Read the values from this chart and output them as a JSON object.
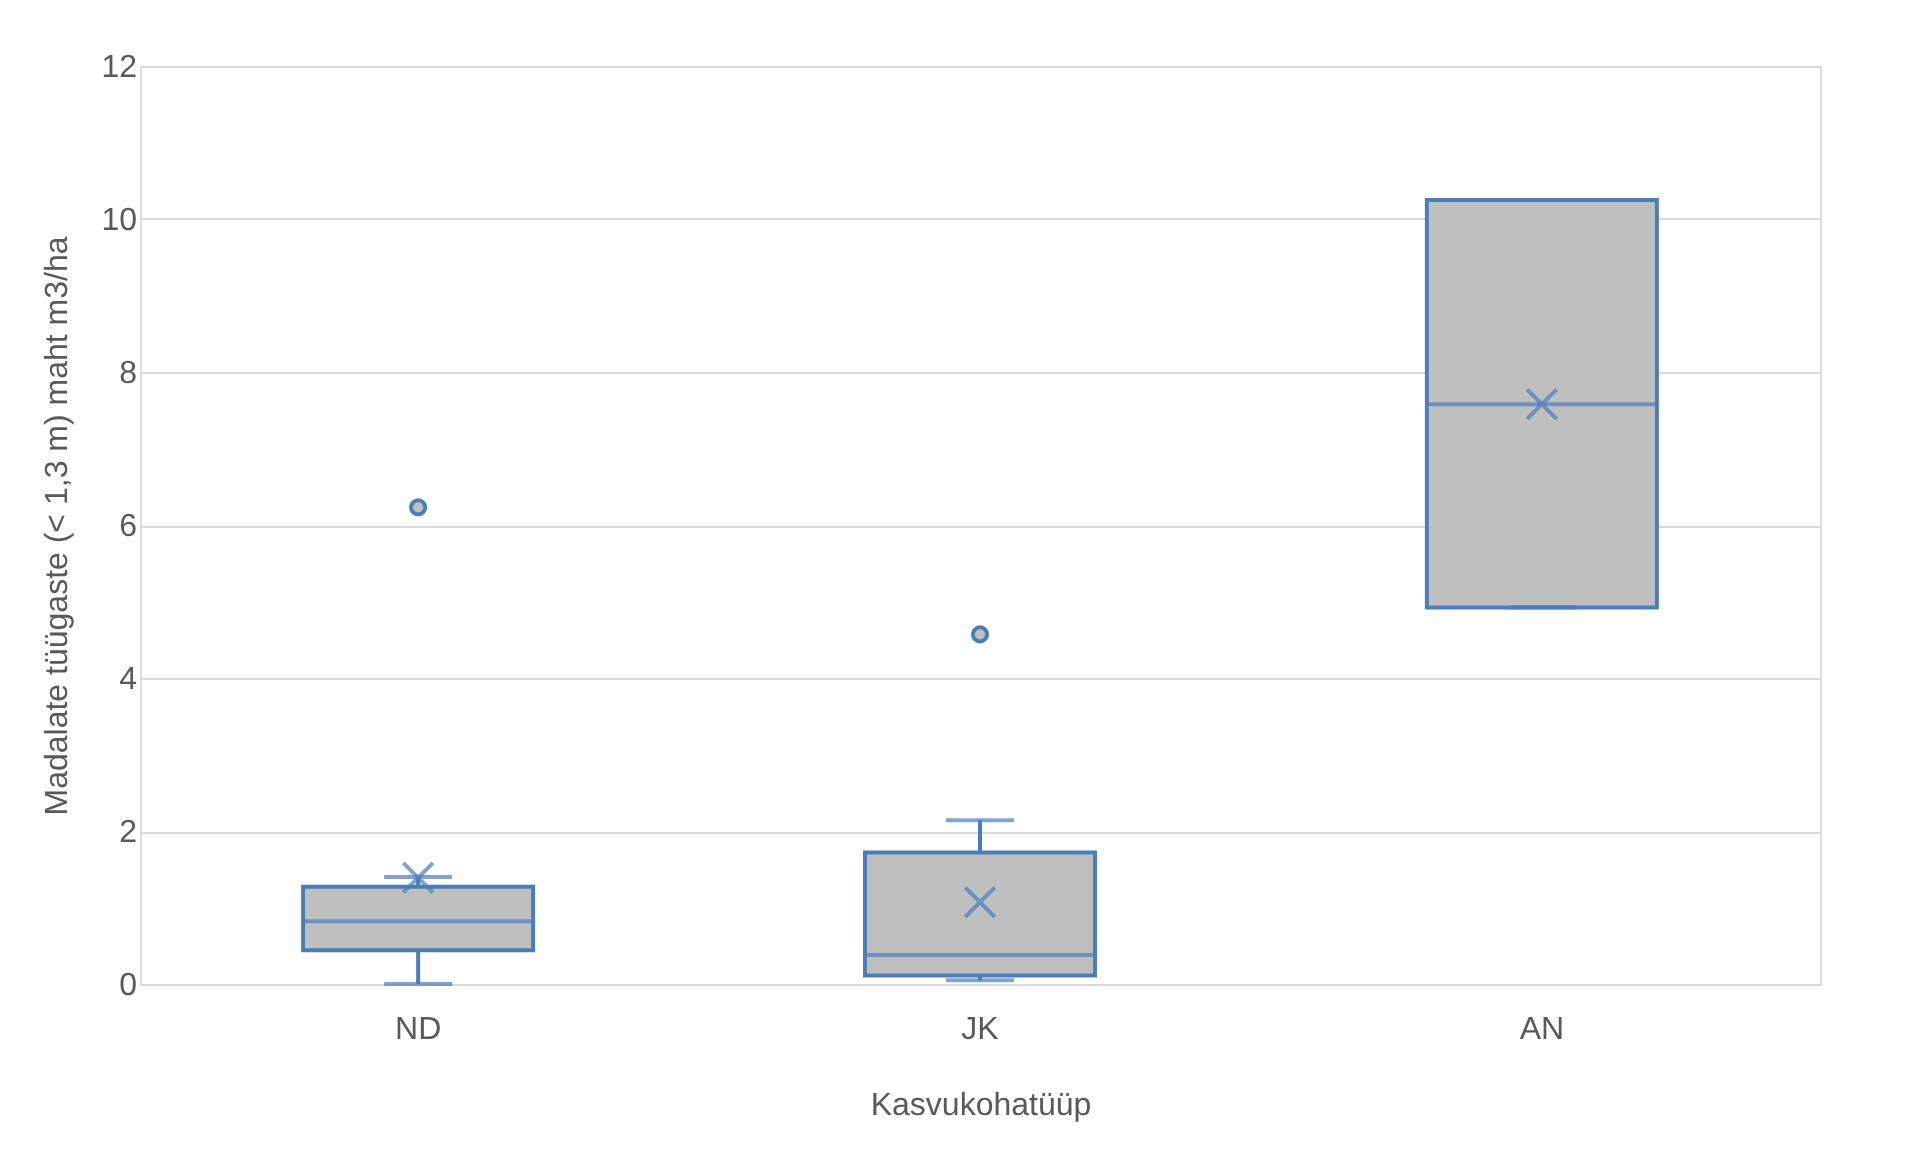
{
  "chart_data": {
    "type": "box",
    "xlabel": "Kasvukohatüüp",
    "ylabel": "Madalate tüügaste (< 1,3 m) maht m3/ha",
    "categories": [
      "ND",
      "JK",
      "AN"
    ],
    "color": "#bfbfbf",
    "series": [
      {
        "color": "#4a7ebb",
        "boxes": [
          {
            "low": 0,
            "q1": 0.44,
            "median": 0.82,
            "q3": 1.27,
            "high": 1.4,
            "mean": 1.39,
            "outliers": [
              6.23
            ]
          },
          {
            "low": 0.05,
            "q1": 0.11,
            "median": 0.38,
            "q3": 1.72,
            "high": 2.14,
            "mean": 1.07,
            "outliers": [
              4.57
            ]
          },
          {
            "low": 4.92,
            "q1": 4.92,
            "median": 7.58,
            "q3": 10.25,
            "high": 10.25,
            "mean": 7.58
          }
        ]
      }
    ],
    "ylim": [
      0,
      12
    ],
    "yticks": [
      0,
      2,
      4,
      6,
      8,
      10,
      12
    ],
    "grid": "y"
  }
}
